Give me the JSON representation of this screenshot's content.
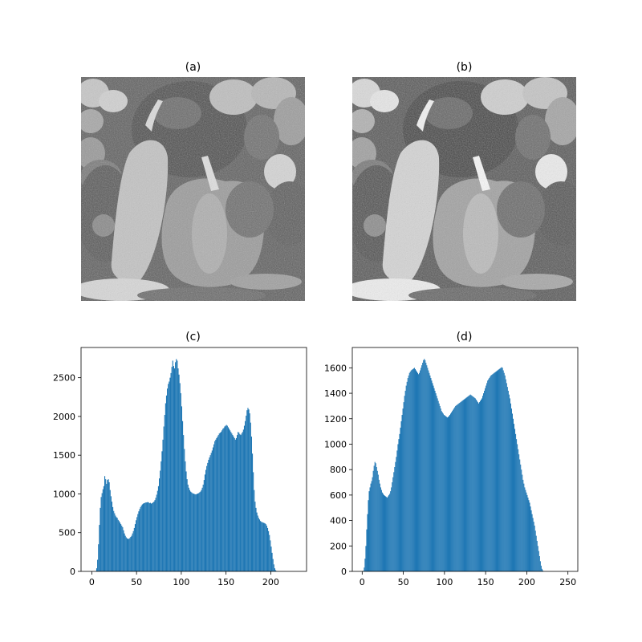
{
  "panels": {
    "a": {
      "title": "(a)"
    },
    "b": {
      "title": "(b)"
    }
  },
  "colors": {
    "bar": "#1f77b4",
    "axis": "#000000"
  },
  "chart_data": [
    {
      "type": "bar",
      "title": "(c)",
      "xlabel": "",
      "ylabel": "",
      "xlim": [
        -12,
        240
      ],
      "ylim": [
        0,
        2890
      ],
      "xticks": [
        0,
        50,
        100,
        150,
        200
      ],
      "yticks": [
        0,
        500,
        1000,
        1500,
        2000,
        2500
      ],
      "bin_start": 0,
      "bin_width": 1,
      "values": [
        0,
        0,
        0,
        0,
        5,
        40,
        150,
        350,
        600,
        820,
        960,
        1010,
        1060,
        1100,
        1230,
        1190,
        1130,
        1180,
        1190,
        1150,
        1050,
        970,
        900,
        830,
        780,
        750,
        720,
        700,
        690,
        665,
        650,
        630,
        610,
        590,
        570,
        530,
        490,
        460,
        440,
        425,
        420,
        420,
        430,
        445,
        460,
        490,
        520,
        560,
        610,
        660,
        700,
        740,
        775,
        805,
        830,
        850,
        865,
        875,
        880,
        885,
        890,
        890,
        895,
        890,
        880,
        885,
        875,
        880,
        890,
        900,
        920,
        950,
        990,
        1040,
        1100,
        1200,
        1300,
        1420,
        1550,
        1700,
        1870,
        2020,
        2170,
        2270,
        2360,
        2420,
        2450,
        2500,
        2560,
        2640,
        2720,
        2650,
        2620,
        2700,
        2740,
        2720,
        2620,
        2540,
        2430,
        2300,
        2130,
        1940,
        1760,
        1580,
        1420,
        1290,
        1190,
        1120,
        1080,
        1050,
        1030,
        1020,
        1010,
        1005,
        1000,
        995,
        995,
        1000,
        1005,
        1010,
        1020,
        1030,
        1050,
        1080,
        1120,
        1180,
        1250,
        1310,
        1360,
        1400,
        1440,
        1470,
        1500,
        1530,
        1560,
        1600,
        1640,
        1680,
        1700,
        1720,
        1740,
        1760,
        1780,
        1790,
        1800,
        1820,
        1840,
        1850,
        1870,
        1880,
        1890,
        1880,
        1860,
        1840,
        1820,
        1800,
        1780,
        1760,
        1740,
        1720,
        1700,
        1720,
        1760,
        1800,
        1790,
        1770,
        1760,
        1780,
        1800,
        1830,
        1880,
        1940,
        2010,
        2080,
        2110,
        2090,
        2040,
        1920,
        1740,
        1520,
        1280,
        1050,
        900,
        820,
        760,
        720,
        690,
        670,
        650,
        640,
        635,
        630,
        625,
        620,
        610,
        590,
        560,
        520,
        470,
        400,
        320,
        240,
        160,
        90,
        40,
        15,
        5,
        0
      ]
    },
    {
      "type": "bar",
      "title": "(d)",
      "xlabel": "",
      "ylabel": "",
      "xlim": [
        -12,
        262
      ],
      "ylim": [
        0,
        1760
      ],
      "xticks": [
        0,
        50,
        100,
        150,
        200,
        250
      ],
      "yticks": [
        0,
        200,
        400,
        600,
        800,
        1000,
        1200,
        1400,
        1600
      ],
      "bin_start": 0,
      "bin_width": 1,
      "values": [
        0,
        5,
        30,
        100,
        200,
        330,
        450,
        560,
        630,
        660,
        690,
        710,
        740,
        790,
        830,
        860,
        850,
        820,
        790,
        760,
        720,
        690,
        660,
        640,
        620,
        610,
        600,
        595,
        590,
        585,
        580,
        590,
        600,
        610,
        630,
        660,
        700,
        740,
        780,
        820,
        860,
        900,
        950,
        1000,
        1040,
        1080,
        1130,
        1180,
        1230,
        1280,
        1330,
        1380,
        1420,
        1460,
        1490,
        1520,
        1540,
        1560,
        1570,
        1580,
        1585,
        1590,
        1595,
        1600,
        1590,
        1580,
        1570,
        1560,
        1550,
        1560,
        1580,
        1600,
        1620,
        1640,
        1660,
        1670,
        1660,
        1640,
        1620,
        1600,
        1580,
        1560,
        1540,
        1520,
        1500,
        1480,
        1460,
        1440,
        1420,
        1400,
        1380,
        1360,
        1340,
        1320,
        1300,
        1280,
        1260,
        1250,
        1240,
        1230,
        1225,
        1220,
        1215,
        1210,
        1215,
        1220,
        1230,
        1240,
        1250,
        1260,
        1270,
        1280,
        1290,
        1300,
        1305,
        1310,
        1315,
        1320,
        1325,
        1330,
        1335,
        1340,
        1345,
        1350,
        1355,
        1360,
        1365,
        1370,
        1375,
        1380,
        1385,
        1390,
        1385,
        1380,
        1375,
        1370,
        1365,
        1360,
        1350,
        1340,
        1330,
        1320,
        1330,
        1340,
        1350,
        1360,
        1380,
        1400,
        1420,
        1440,
        1460,
        1480,
        1500,
        1510,
        1520,
        1530,
        1540,
        1545,
        1550,
        1555,
        1560,
        1565,
        1570,
        1575,
        1580,
        1585,
        1590,
        1595,
        1600,
        1605,
        1600,
        1580,
        1560,
        1540,
        1510,
        1480,
        1450,
        1420,
        1390,
        1360,
        1320,
        1280,
        1240,
        1200,
        1160,
        1120,
        1080,
        1040,
        1000,
        960,
        920,
        880,
        840,
        800,
        760,
        720,
        690,
        660,
        640,
        620,
        600,
        580,
        560,
        540,
        510,
        480,
        450,
        420,
        390,
        360,
        320,
        280,
        240,
        200,
        160,
        120,
        80,
        45,
        20,
        8,
        0,
        0,
        0,
        0
      ]
    }
  ]
}
